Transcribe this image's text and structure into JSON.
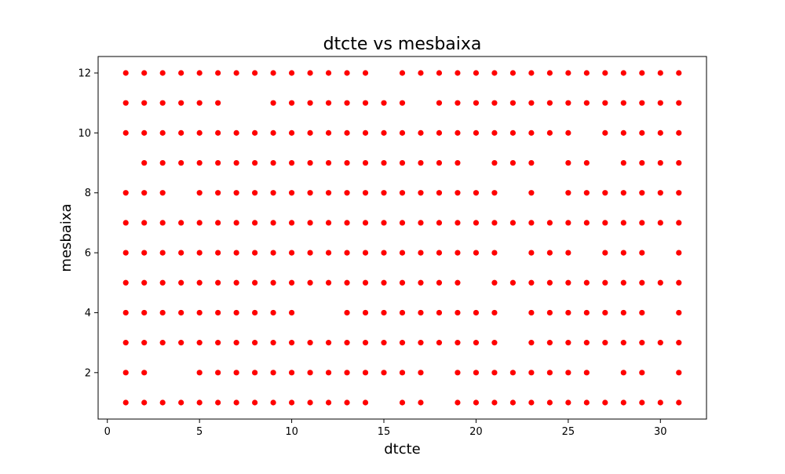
{
  "chart_data": {
    "type": "scatter",
    "title": "dtcte vs mesbaixa",
    "xlabel": "dtcte",
    "ylabel": "mesbaixa",
    "xlim": [
      -0.5,
      32.5
    ],
    "ylim": [
      0.45,
      12.55
    ],
    "xticks": [
      0,
      5,
      10,
      15,
      20,
      25,
      30
    ],
    "yticks": [
      2,
      4,
      6,
      8,
      10,
      12
    ],
    "grid": false,
    "marker_color": "#ff0000",
    "rows": [
      {
        "y": 12,
        "x": [
          1,
          2,
          3,
          4,
          5,
          6,
          7,
          8,
          9,
          10,
          11,
          12,
          13,
          14,
          16,
          17,
          18,
          19,
          20,
          21,
          22,
          23,
          24,
          25,
          26,
          27,
          28,
          29,
          30,
          31
        ]
      },
      {
        "y": 11,
        "x": [
          1,
          2,
          3,
          4,
          5,
          6,
          9,
          10,
          11,
          12,
          13,
          14,
          15,
          16,
          18,
          19,
          20,
          21,
          22,
          23,
          24,
          25,
          26,
          27,
          28,
          29,
          30,
          31
        ]
      },
      {
        "y": 10,
        "x": [
          1,
          2,
          3,
          4,
          5,
          6,
          7,
          8,
          9,
          10,
          11,
          12,
          13,
          14,
          15,
          16,
          17,
          18,
          19,
          20,
          21,
          22,
          23,
          24,
          25,
          27,
          28,
          29,
          30,
          31
        ]
      },
      {
        "y": 9,
        "x": [
          2,
          3,
          4,
          5,
          6,
          7,
          8,
          9,
          10,
          11,
          12,
          13,
          14,
          15,
          16,
          17,
          18,
          19,
          21,
          22,
          23,
          25,
          26,
          28,
          29,
          30,
          31
        ]
      },
      {
        "y": 8,
        "x": [
          1,
          2,
          3,
          5,
          6,
          7,
          8,
          9,
          10,
          11,
          12,
          13,
          14,
          15,
          16,
          17,
          18,
          19,
          20,
          21,
          23,
          25,
          26,
          27,
          28,
          29,
          30,
          31
        ]
      },
      {
        "y": 7,
        "x": [
          1,
          2,
          3,
          4,
          5,
          6,
          7,
          8,
          9,
          10,
          11,
          12,
          13,
          14,
          15,
          16,
          17,
          18,
          19,
          20,
          21,
          22,
          23,
          24,
          25,
          26,
          27,
          28,
          29,
          30,
          31
        ]
      },
      {
        "y": 6,
        "x": [
          1,
          2,
          3,
          4,
          5,
          6,
          7,
          8,
          9,
          10,
          11,
          12,
          13,
          14,
          15,
          16,
          17,
          18,
          19,
          20,
          21,
          23,
          24,
          25,
          27,
          28,
          29,
          31
        ]
      },
      {
        "y": 5,
        "x": [
          1,
          2,
          3,
          4,
          5,
          6,
          7,
          8,
          9,
          10,
          11,
          12,
          13,
          14,
          15,
          16,
          17,
          18,
          19,
          21,
          22,
          23,
          24,
          25,
          26,
          27,
          28,
          29,
          30,
          31
        ]
      },
      {
        "y": 4,
        "x": [
          1,
          2,
          3,
          4,
          5,
          6,
          7,
          8,
          9,
          10,
          13,
          14,
          15,
          16,
          17,
          18,
          19,
          20,
          21,
          23,
          24,
          25,
          26,
          27,
          28,
          29,
          31
        ]
      },
      {
        "y": 3,
        "x": [
          1,
          2,
          3,
          4,
          5,
          6,
          7,
          8,
          9,
          10,
          11,
          12,
          13,
          14,
          15,
          16,
          17,
          18,
          19,
          20,
          21,
          23,
          24,
          25,
          26,
          27,
          28,
          29,
          30,
          31
        ]
      },
      {
        "y": 2,
        "x": [
          1,
          2,
          5,
          6,
          7,
          8,
          9,
          10,
          11,
          12,
          13,
          14,
          15,
          16,
          17,
          19,
          20,
          21,
          22,
          23,
          24,
          25,
          26,
          28,
          29,
          31
        ]
      },
      {
        "y": 1,
        "x": [
          1,
          2,
          3,
          4,
          5,
          6,
          7,
          8,
          9,
          10,
          11,
          12,
          13,
          14,
          16,
          17,
          19,
          20,
          21,
          22,
          23,
          24,
          25,
          26,
          27,
          28,
          29,
          30,
          31
        ]
      }
    ]
  }
}
